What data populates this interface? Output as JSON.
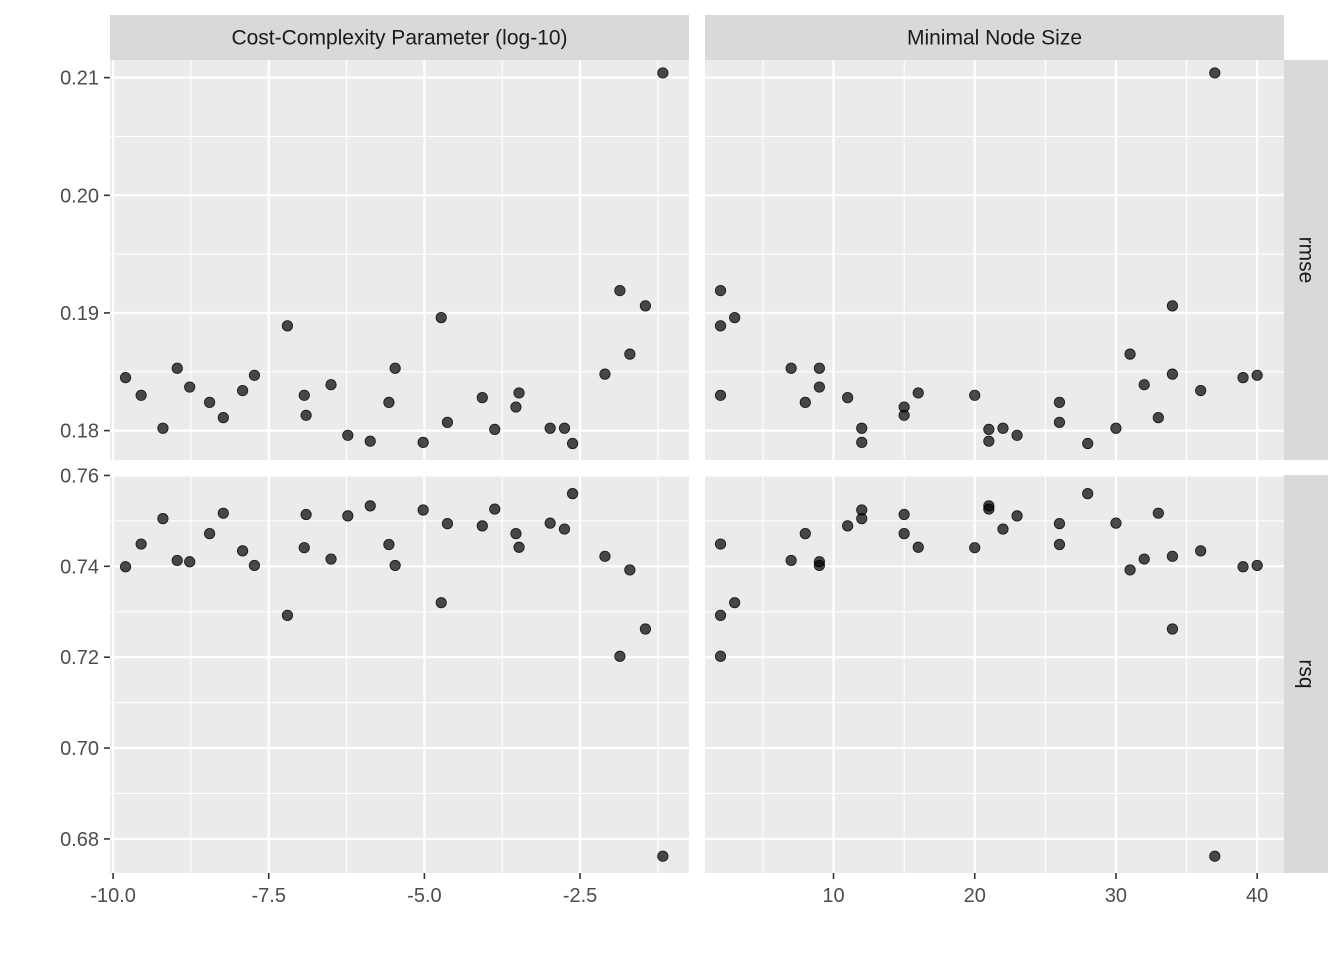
{
  "chart_data": {
    "type": "scatter",
    "facet_columns": [
      "Cost-Complexity Parameter (log-10)",
      "Minimal Node Size"
    ],
    "facet_rows": [
      "rmse",
      "rsq"
    ],
    "grid": true,
    "colors": {
      "panel_bg": "#ebebeb",
      "strip_bg": "#d9d9d9",
      "grid": "#ffffff",
      "point": "#000000",
      "point_alpha": 0.7
    },
    "x_axes": [
      {
        "range": [
          -10.05,
          -0.75
        ],
        "ticks": [
          -10.0,
          -7.5,
          -5.0,
          -2.5
        ],
        "tick_labels": [
          "-10.0",
          "-7.5",
          "-5.0",
          "-2.5"
        ]
      },
      {
        "range": [
          0.9,
          41.9
        ],
        "ticks": [
          10,
          20,
          30,
          40
        ],
        "tick_labels": [
          "10",
          "20",
          "30",
          "40"
        ]
      }
    ],
    "y_axes": [
      {
        "range": [
          0.1775,
          0.2115
        ],
        "ticks": [
          0.18,
          0.19,
          0.2,
          0.21
        ],
        "tick_labels": [
          "0.18",
          "0.19",
          "0.20",
          "0.21"
        ]
      },
      {
        "range": [
          0.6725,
          0.7601
        ],
        "ticks": [
          0.68,
          0.7,
          0.72,
          0.74,
          0.76
        ],
        "tick_labels": [
          "0.68",
          "0.70",
          "0.72",
          "0.74",
          "0.76"
        ]
      }
    ],
    "rmse": [
      0.1845,
      0.183,
      0.1802,
      0.1853,
      0.1837,
      0.1824,
      0.1811,
      0.1834,
      0.1847,
      0.1889,
      0.183,
      0.1813,
      0.1839,
      0.1796,
      0.1791,
      0.1824,
      0.1853,
      0.179,
      0.1896,
      0.1807,
      0.1828,
      0.1801,
      0.182,
      0.1832,
      0.1802,
      0.1802,
      0.1789,
      0.1848,
      0.1919,
      0.1865,
      0.1906,
      0.2104
    ],
    "rsq": [
      0.7399,
      0.7449,
      0.7505,
      0.7413,
      0.741,
      0.7472,
      0.7517,
      0.7434,
      0.7402,
      0.7292,
      0.7441,
      0.7514,
      0.7416,
      0.7511,
      0.7533,
      0.7448,
      0.7402,
      0.7524,
      0.732,
      0.7494,
      0.7489,
      0.7526,
      0.7472,
      0.7442,
      0.7495,
      0.7482,
      0.756,
      0.7422,
      0.7202,
      0.7392,
      0.7262,
      0.6762
    ],
    "cost_complexity_log10": [
      -9.8,
      -9.55,
      -9.2,
      -8.97,
      -8.77,
      -8.45,
      -8.23,
      -7.92,
      -7.73,
      -7.2,
      -6.93,
      -6.9,
      -6.5,
      -6.23,
      -5.87,
      -5.57,
      -5.47,
      -5.02,
      -4.73,
      -4.63,
      -4.07,
      -3.87,
      -3.53,
      -3.48,
      -2.98,
      -2.75,
      -2.62,
      -2.1,
      -1.86,
      -1.7,
      -1.45,
      -1.17
    ],
    "min_n": [
      39,
      2,
      12,
      7,
      9,
      8,
      33,
      36,
      40,
      2,
      20,
      15,
      32,
      23,
      21,
      26,
      9,
      12,
      3,
      26,
      11,
      21,
      15,
      16,
      30,
      22,
      28,
      34,
      2,
      31,
      34,
      37
    ]
  }
}
